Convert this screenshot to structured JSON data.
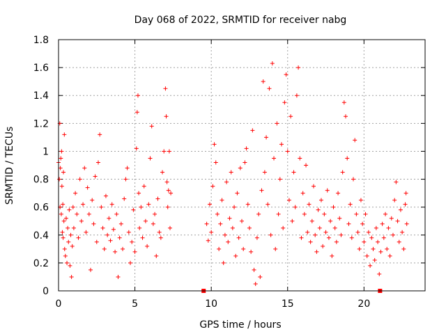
{
  "chart_data": {
    "type": "scatter",
    "title": "Day 068 of 2022, SRMTID for receiver nabg",
    "xlabel": "GPS time / hours",
    "ylabel": "SRMTID / TECUs",
    "xlim": [
      0,
      24
    ],
    "ylim": [
      0,
      1.8
    ],
    "xticks": [
      0,
      5,
      10,
      15,
      20
    ],
    "yticks": [
      0,
      0.2,
      0.4,
      0.6,
      0.8,
      1,
      1.2,
      1.4,
      1.6,
      1.8
    ],
    "ytick_labels": [
      "0",
      "0.2",
      "0.4",
      "0.6",
      "0.8",
      "1",
      "1.2",
      "1.4",
      "1.6",
      "1.8"
    ],
    "grid": true,
    "marker_color": "#ff0000",
    "series": [
      {
        "name": "SRMTID",
        "marker": "plus",
        "points": [
          [
            0.0,
            0.92
          ],
          [
            0.05,
            0.8
          ],
          [
            0.08,
            1.2
          ],
          [
            0.1,
            0.6
          ],
          [
            0.12,
            0.88
          ],
          [
            0.15,
            0.95
          ],
          [
            0.18,
            0.55
          ],
          [
            0.2,
            1.0
          ],
          [
            0.22,
            0.75
          ],
          [
            0.25,
            0.42
          ],
          [
            0.28,
            0.62
          ],
          [
            0.3,
            0.38
          ],
          [
            0.32,
            0.85
          ],
          [
            0.35,
            0.5
          ],
          [
            0.38,
            1.12
          ],
          [
            0.4,
            0.3
          ],
          [
            0.45,
            0.25
          ],
          [
            0.5,
            0.52
          ],
          [
            0.55,
            0.2
          ],
          [
            0.6,
            0.45
          ],
          [
            0.65,
            0.35
          ],
          [
            0.7,
            0.58
          ],
          [
            0.75,
            0.18
          ],
          [
            0.8,
            0.4
          ],
          [
            0.85,
            0.1
          ],
          [
            0.9,
            0.32
          ],
          [
            0.95,
            0.6
          ],
          [
            1.0,
            0.45
          ],
          [
            1.1,
            0.7
          ],
          [
            1.2,
            0.55
          ],
          [
            1.3,
            0.38
          ],
          [
            1.4,
            0.8
          ],
          [
            1.5,
            0.5
          ],
          [
            1.6,
            0.62
          ],
          [
            1.7,
            0.88
          ],
          [
            1.8,
            0.42
          ],
          [
            1.9,
            0.74
          ],
          [
            2.0,
            0.55
          ],
          [
            2.1,
            0.15
          ],
          [
            2.2,
            0.65
          ],
          [
            2.3,
            0.48
          ],
          [
            2.4,
            0.82
          ],
          [
            2.5,
            0.35
          ],
          [
            2.6,
            0.92
          ],
          [
            2.7,
            1.12
          ],
          [
            2.8,
            0.6
          ],
          [
            2.9,
            0.45
          ],
          [
            3.0,
            0.3
          ],
          [
            3.1,
            0.68
          ],
          [
            3.2,
            0.4
          ],
          [
            3.3,
            0.52
          ],
          [
            3.4,
            0.36
          ],
          [
            3.5,
            0.62
          ],
          [
            3.6,
            0.44
          ],
          [
            3.7,
            0.28
          ],
          [
            3.8,
            0.55
          ],
          [
            3.9,
            0.1
          ],
          [
            4.0,
            0.38
          ],
          [
            4.1,
            0.48
          ],
          [
            4.2,
            0.3
          ],
          [
            4.3,
            0.66
          ],
          [
            4.4,
            0.8
          ],
          [
            4.5,
            0.88
          ],
          [
            4.6,
            0.42
          ],
          [
            4.7,
            0.2
          ],
          [
            4.8,
            0.35
          ],
          [
            4.9,
            0.58
          ],
          [
            5.0,
            0.28
          ],
          [
            5.1,
            1.02
          ],
          [
            5.15,
            1.28
          ],
          [
            5.2,
            1.4
          ],
          [
            5.25,
            0.7
          ],
          [
            5.3,
            0.45
          ],
          [
            5.4,
            0.6
          ],
          [
            5.5,
            0.38
          ],
          [
            5.6,
            0.75
          ],
          [
            5.7,
            0.5
          ],
          [
            5.8,
            0.32
          ],
          [
            5.9,
            0.62
          ],
          [
            6.0,
            0.95
          ],
          [
            6.1,
            1.18
          ],
          [
            6.2,
            0.48
          ],
          [
            6.3,
            0.55
          ],
          [
            6.4,
            0.25
          ],
          [
            6.5,
            0.66
          ],
          [
            6.6,
            0.42
          ],
          [
            6.7,
            0.38
          ],
          [
            6.8,
            0.85
          ],
          [
            6.9,
            1.0
          ],
          [
            7.0,
            1.45
          ],
          [
            7.05,
            1.25
          ],
          [
            7.1,
            0.78
          ],
          [
            7.15,
            0.6
          ],
          [
            7.2,
            0.72
          ],
          [
            7.25,
            1.0
          ],
          [
            7.3,
            0.45
          ],
          [
            7.35,
            0.7
          ],
          [
            9.5,
            0.0
          ],
          [
            9.7,
            0.48
          ],
          [
            9.8,
            0.36
          ],
          [
            9.9,
            0.62
          ],
          [
            10.0,
            0.42
          ],
          [
            10.1,
            0.75
          ],
          [
            10.2,
            1.05
          ],
          [
            10.3,
            0.92
          ],
          [
            10.4,
            0.55
          ],
          [
            10.5,
            0.3
          ],
          [
            10.6,
            0.48
          ],
          [
            10.7,
            0.65
          ],
          [
            10.8,
            0.2
          ],
          [
            10.9,
            0.4
          ],
          [
            11.0,
            0.78
          ],
          [
            11.1,
            0.35
          ],
          [
            11.2,
            0.52
          ],
          [
            11.3,
            0.85
          ],
          [
            11.4,
            0.45
          ],
          [
            11.5,
            0.6
          ],
          [
            11.6,
            0.25
          ],
          [
            11.7,
            0.7
          ],
          [
            11.8,
            0.38
          ],
          [
            11.9,
            0.88
          ],
          [
            12.0,
            0.5
          ],
          [
            12.1,
            0.3
          ],
          [
            12.2,
            0.92
          ],
          [
            12.3,
            1.02
          ],
          [
            12.4,
            0.62
          ],
          [
            12.5,
            0.45
          ],
          [
            12.6,
            0.28
          ],
          [
            12.7,
            1.15
          ],
          [
            12.8,
            0.15
          ],
          [
            12.9,
            0.05
          ],
          [
            13.0,
            0.38
          ],
          [
            13.1,
            0.55
          ],
          [
            13.2,
            0.1
          ],
          [
            13.3,
            0.72
          ],
          [
            13.4,
            1.5
          ],
          [
            13.5,
            0.85
          ],
          [
            13.6,
            1.1
          ],
          [
            13.7,
            0.62
          ],
          [
            13.8,
            1.45
          ],
          [
            13.9,
            0.4
          ],
          [
            14.0,
            1.63
          ],
          [
            14.1,
            0.95
          ],
          [
            14.2,
            0.3
          ],
          [
            14.3,
            1.2
          ],
          [
            14.4,
            0.55
          ],
          [
            14.5,
            0.8
          ],
          [
            14.6,
            1.05
          ],
          [
            14.7,
            0.45
          ],
          [
            14.8,
            1.35
          ],
          [
            14.9,
            1.55
          ],
          [
            15.0,
            1.0
          ],
          [
            15.1,
            0.65
          ],
          [
            15.2,
            1.25
          ],
          [
            15.3,
            0.5
          ],
          [
            15.4,
            0.85
          ],
          [
            15.5,
            0.6
          ],
          [
            15.6,
            1.4
          ],
          [
            15.7,
            1.6
          ],
          [
            15.8,
            0.95
          ],
          [
            15.9,
            0.38
          ],
          [
            16.0,
            0.7
          ],
          [
            16.1,
            0.55
          ],
          [
            16.2,
            0.9
          ],
          [
            16.3,
            0.42
          ],
          [
            16.4,
            0.62
          ],
          [
            16.5,
            0.35
          ],
          [
            16.6,
            0.5
          ],
          [
            16.7,
            0.75
          ],
          [
            16.8,
            0.4
          ],
          [
            16.9,
            0.28
          ],
          [
            17.0,
            0.58
          ],
          [
            17.1,
            0.45
          ],
          [
            17.2,
            0.65
          ],
          [
            17.3,
            0.32
          ],
          [
            17.4,
            0.55
          ],
          [
            17.5,
            0.42
          ],
          [
            17.6,
            0.72
          ],
          [
            17.7,
            0.38
          ],
          [
            17.8,
            0.5
          ],
          [
            17.9,
            0.25
          ],
          [
            18.0,
            0.6
          ],
          [
            18.1,
            0.45
          ],
          [
            18.2,
            0.35
          ],
          [
            18.3,
            0.7
          ],
          [
            18.4,
            0.52
          ],
          [
            18.5,
            0.4
          ],
          [
            18.6,
            0.85
          ],
          [
            18.7,
            1.35
          ],
          [
            18.8,
            1.25
          ],
          [
            18.9,
            0.95
          ],
          [
            19.0,
            0.48
          ],
          [
            19.1,
            0.62
          ],
          [
            19.2,
            0.38
          ],
          [
            19.3,
            0.8
          ],
          [
            19.4,
            1.08
          ],
          [
            19.5,
            0.55
          ],
          [
            19.6,
            0.42
          ],
          [
            19.7,
            0.3
          ],
          [
            19.8,
            0.65
          ],
          [
            19.9,
            0.48
          ],
          [
            20.0,
            0.35
          ],
          [
            20.1,
            0.55
          ],
          [
            20.2,
            0.25
          ],
          [
            20.3,
            0.42
          ],
          [
            20.4,
            0.18
          ],
          [
            20.5,
            0.38
          ],
          [
            20.6,
            0.3
          ],
          [
            20.7,
            0.22
          ],
          [
            20.8,
            0.45
          ],
          [
            20.9,
            0.35
          ],
          [
            21.0,
            0.12
          ],
          [
            21.05,
            0.0
          ],
          [
            21.1,
            0.28
          ],
          [
            21.2,
            0.48
          ],
          [
            21.3,
            0.38
          ],
          [
            21.4,
            0.55
          ],
          [
            21.5,
            0.3
          ],
          [
            21.6,
            0.45
          ],
          [
            21.7,
            0.25
          ],
          [
            21.8,
            0.52
          ],
          [
            21.9,
            0.4
          ],
          [
            22.0,
            0.65
          ],
          [
            22.1,
            0.78
          ],
          [
            22.2,
            0.5
          ],
          [
            22.3,
            0.35
          ],
          [
            22.4,
            0.58
          ],
          [
            22.5,
            0.42
          ],
          [
            22.6,
            0.3
          ],
          [
            22.7,
            0.62
          ],
          [
            22.75,
            0.7
          ],
          [
            22.8,
            0.48
          ]
        ]
      }
    ]
  }
}
